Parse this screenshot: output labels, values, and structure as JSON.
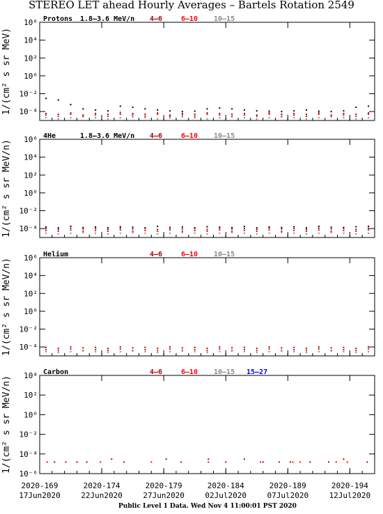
{
  "title": "STEREO LET ahead Hourly Averages – Bartels Rotation 2549",
  "footer": "Public Level 1 Data. Wed Nov  4 11:00:01 PST 2020",
  "chart_data": [
    {
      "type": "scatter",
      "label": "Protons",
      "ylabel": "1/(cm² s sr MeV)",
      "xlim": [
        169,
        196
      ],
      "ylim": [
        1e-05,
        1000000
      ],
      "log_y": true,
      "xticks": [
        {
          "value": 169,
          "label": "2020-169",
          "date": "17Jun2020"
        },
        {
          "value": 174,
          "label": "2020-174",
          "date": "22Jun2020"
        },
        {
          "value": 179,
          "label": "2020-179",
          "date": "27Jun2020"
        },
        {
          "value": 184,
          "label": "2020-184",
          "date": "02Jul2020"
        },
        {
          "value": 189,
          "label": "2020-189",
          "date": "07Jul2020"
        },
        {
          "value": 194,
          "label": "2020-194",
          "date": "12Jul2020"
        }
      ],
      "yticks": [
        {
          "value": 1000000,
          "label": "10⁶"
        },
        {
          "value": 10000,
          "label": "10⁴"
        },
        {
          "value": 100,
          "label": "10²"
        },
        {
          "value": 1,
          "label": "10⁰"
        },
        {
          "value": 0.01,
          "label": "10⁻²"
        },
        {
          "value": 0.0001,
          "label": "10⁻⁴"
        }
      ],
      "x": [
        169.5,
        170.5,
        171.5,
        172.5,
        173.5,
        174.5,
        175.5,
        176.5,
        177.5,
        178.5,
        179.5,
        180.5,
        181.5,
        182.5,
        183.5,
        184.5,
        185.5,
        186.5,
        187.5,
        188.5,
        189.5,
        190.5,
        191.5,
        192.5,
        193.5,
        194.5,
        195.5
      ],
      "series": [
        {
          "name": "1.8–3.6 MeV/n",
          "color": "#000000",
          "values": [
            0.003,
            0.002,
            0.0006,
            0.0002,
            0.00015,
            0.00012,
            0.0004,
            0.0003,
            0.0002,
            0.00015,
            0.00012,
            0.0001,
            0.00011,
            0.0002,
            0.00025,
            0.0002,
            0.00015,
            0.00012,
            0.00011,
            0.0001,
            0.00012,
            0.00015,
            0.00011,
            0.0001,
            0.00012,
            0.0003,
            0.0004
          ]
        },
        {
          "name": "4–6",
          "color": "#b00000",
          "values": [
            6e-05,
            5e-05,
            7e-05,
            4e-05,
            6e-05,
            5e-05,
            8e-05,
            6e-05,
            5e-05,
            7e-05,
            4e-05,
            6e-05,
            5e-05,
            7e-05,
            6e-05,
            5e-05,
            6e-05,
            4e-05,
            7e-05,
            5e-05,
            6e-05,
            5e-05,
            7e-05,
            4e-05,
            6e-05,
            5e-05,
            7e-05
          ]
        },
        {
          "name": "6–10",
          "color": "#ff0000",
          "values": [
            4e-05,
            3e-05,
            5e-05,
            3e-05,
            4e-05,
            3e-05,
            5e-05,
            4e-05,
            3e-05,
            5e-05,
            3e-05,
            4e-05,
            3e-05,
            5e-05,
            4e-05,
            3e-05,
            4e-05,
            3e-05,
            5e-05,
            3e-05,
            4e-05,
            3e-05,
            5e-05,
            3e-05,
            4e-05,
            3e-05,
            5e-05
          ]
        },
        {
          "name": "10–15",
          "color": "#888888",
          "values": [
            2e-05,
            1.5e-05,
            2e-05,
            2.5e-05,
            2e-05,
            1.5e-05,
            2e-05,
            2.5e-05,
            2e-05,
            1.5e-05,
            2e-05,
            2.5e-05,
            2e-05,
            1.5e-05,
            2e-05,
            2.5e-05,
            2e-05,
            1.5e-05,
            2e-05,
            2.5e-05,
            2e-05,
            1.5e-05,
            2e-05,
            2.5e-05,
            2e-05,
            1.5e-05,
            2e-05
          ]
        }
      ]
    },
    {
      "type": "scatter",
      "label": "4He",
      "ylabel": "1/(cm² s sr MeV/n)",
      "xlim": [
        169,
        196
      ],
      "ylim": [
        1e-05,
        1000000
      ],
      "log_y": true,
      "yticks": [
        {
          "value": 1000000,
          "label": "10⁶"
        },
        {
          "value": 10000,
          "label": "10⁴"
        },
        {
          "value": 100,
          "label": "10²"
        },
        {
          "value": 1,
          "label": "10⁰"
        },
        {
          "value": 0.01,
          "label": "10⁻²"
        },
        {
          "value": 0.0001,
          "label": "10⁻⁴"
        }
      ],
      "x": [
        169.5,
        170.5,
        171.5,
        172.5,
        173.5,
        174.5,
        175.5,
        176.5,
        177.5,
        178.5,
        179.5,
        180.5,
        181.5,
        182.5,
        183.5,
        184.5,
        185.5,
        186.5,
        187.5,
        188.5,
        189.5,
        190.5,
        191.5,
        192.5,
        193.5,
        194.5,
        195.5
      ],
      "series": [
        {
          "name": "1.8–3.6 MeV/n",
          "color": "#000000",
          "values": [
            0.00015,
            0.00012,
            0.00018,
            0.00013,
            0.00015,
            0.00012,
            0.00016,
            0.00014,
            0.00012,
            0.00018,
            0.00013,
            0.00015,
            0.00012,
            0.00016,
            0.00014,
            0.00013,
            0.00017,
            0.00012,
            0.00015,
            0.00013,
            0.00016,
            0.00012,
            0.00018,
            0.00014,
            0.00013,
            0.00016,
            0.00018
          ]
        },
        {
          "name": "4–6",
          "color": "#b00000",
          "values": [
            0.0001,
            8e-05,
            0.00011,
            9e-05,
            0.0001,
            8e-05,
            0.00011,
            9e-05,
            0.0001,
            8e-05,
            0.00011,
            9e-05,
            0.0001,
            8e-05,
            0.00011,
            9e-05,
            0.0001,
            8e-05,
            0.00011,
            9e-05,
            0.0001,
            8e-05,
            0.00011,
            9e-05,
            0.0001,
            8e-05,
            0.00011
          ]
        },
        {
          "name": "6–10",
          "color": "#ff0000",
          "values": [
            6e-05,
            5e-05,
            7e-05,
            5e-05,
            6e-05,
            5e-05,
            7e-05,
            5e-05,
            6e-05,
            5e-05,
            7e-05,
            5e-05,
            6e-05,
            5e-05,
            7e-05,
            5e-05,
            6e-05,
            5e-05,
            7e-05,
            5e-05,
            6e-05,
            5e-05,
            7e-05,
            5e-05,
            6e-05,
            5e-05,
            7e-05
          ]
        },
        {
          "name": "10–15",
          "color": "#888888",
          "values": [
            3e-05,
            2.5e-05,
            3e-05,
            3.5e-05,
            3e-05,
            2.5e-05,
            3e-05,
            3.5e-05,
            3e-05,
            2.5e-05,
            3e-05,
            3.5e-05,
            3e-05,
            2.5e-05,
            3e-05,
            3.5e-05,
            3e-05,
            2.5e-05,
            3e-05,
            3.5e-05,
            3e-05,
            2.5e-05,
            3e-05,
            3.5e-05,
            3e-05,
            2.5e-05,
            3e-05
          ]
        }
      ]
    },
    {
      "type": "scatter",
      "label": "Helium",
      "ylabel": "1/(cm² s sr MeV/n)",
      "xlim": [
        169,
        196
      ],
      "ylim": [
        1e-05,
        1000000
      ],
      "log_y": true,
      "yticks": [
        {
          "value": 1000000,
          "label": "10⁶"
        },
        {
          "value": 10000,
          "label": "10⁴"
        },
        {
          "value": 100,
          "label": "10²"
        },
        {
          "value": 1,
          "label": "10⁰"
        },
        {
          "value": 0.01,
          "label": "10⁻²"
        },
        {
          "value": 0.0001,
          "label": "10⁻⁴"
        }
      ],
      "x": [
        169.5,
        170.5,
        171.5,
        172.5,
        173.5,
        174.5,
        175.5,
        176.5,
        177.5,
        178.5,
        179.5,
        180.5,
        181.5,
        182.5,
        183.5,
        184.5,
        185.5,
        186.5,
        187.5,
        188.5,
        189.5,
        190.5,
        191.5,
        192.5,
        193.5,
        194.5,
        195.5
      ],
      "series": [
        {
          "name": "4–6",
          "color": "#b00000",
          "values": [
            9e-05,
            7e-05,
            0.0001,
            8e-05,
            9e-05,
            7e-05,
            0.0001,
            8e-05,
            9e-05,
            7e-05,
            0.0001,
            8e-05,
            9e-05,
            7e-05,
            0.0001,
            8e-05,
            9e-05,
            7e-05,
            0.0001,
            8e-05,
            9e-05,
            7e-05,
            0.0001,
            8e-05,
            9e-05,
            7e-05,
            0.0001
          ]
        },
        {
          "name": "6–10",
          "color": "#ff0000",
          "values": [
            5e-05,
            4e-05,
            6e-05,
            4e-05,
            5e-05,
            4e-05,
            6e-05,
            4e-05,
            5e-05,
            4e-05,
            6e-05,
            4e-05,
            5e-05,
            4e-05,
            6e-05,
            4e-05,
            5e-05,
            4e-05,
            6e-05,
            4e-05,
            5e-05,
            4e-05,
            6e-05,
            4e-05,
            5e-05,
            4e-05,
            6e-05
          ]
        },
        {
          "name": "10–15",
          "color": "#888888",
          "values": [
            3e-05,
            2.5e-05,
            3e-05,
            3.5e-05,
            3e-05,
            2.5e-05,
            3e-05,
            3.5e-05,
            3e-05,
            2.5e-05,
            3e-05,
            3.5e-05,
            3e-05,
            2.5e-05,
            3e-05,
            3.5e-05,
            3e-05,
            2.5e-05,
            3e-05,
            3.5e-05,
            3e-05,
            2.5e-05,
            3e-05,
            3.5e-05,
            3e-05,
            2.5e-05,
            3e-05
          ]
        }
      ]
    },
    {
      "type": "scatter",
      "label": "Carbon",
      "ylabel": "1/(cm² s sr MeV/n)",
      "xlim": [
        169,
        196
      ],
      "ylim": [
        1e-06,
        10000
      ],
      "log_y": true,
      "yticks": [
        {
          "value": 10000,
          "label": "10⁴"
        },
        {
          "value": 100,
          "label": "10²"
        },
        {
          "value": 1,
          "label": "10⁰"
        },
        {
          "value": 0.01,
          "label": "10⁻²"
        },
        {
          "value": 0.0001,
          "label": "10⁻⁴"
        },
        {
          "value": 1e-06,
          "label": "10⁻⁶"
        }
      ],
      "series": [
        {
          "name": "4–6",
          "color": "#b00000",
          "x": [
            170.2,
            171.1,
            172.0,
            172.8,
            174.8,
            175.8,
            179.2,
            180.4,
            182.6,
            184.0,
            185.5,
            187.0,
            188.3,
            189.2,
            190.8,
            192.3,
            193.5,
            195.4
          ],
          "values": [
            1.5e-05,
            1.5e-05,
            1.5e-05,
            1.5e-05,
            3e-05,
            1.5e-05,
            3e-05,
            1.5e-05,
            3e-05,
            1.5e-05,
            3e-05,
            1.5e-05,
            1.5e-05,
            1.5e-05,
            1.5e-05,
            1.5e-05,
            3e-05,
            1.5e-05
          ]
        },
        {
          "name": "6–10",
          "color": "#ff0000",
          "x": [
            169.6,
            173.9,
            178.0,
            182.6,
            186.8,
            189.4,
            190.0,
            192.9,
            193.8
          ],
          "values": [
            1.5e-05,
            1.5e-05,
            1.5e-05,
            1.5e-05,
            1.5e-05,
            1.5e-05,
            1.5e-05,
            1.5e-05,
            1.5e-05
          ]
        },
        {
          "name": "10–15",
          "color": "#888888",
          "x": [],
          "values": []
        },
        {
          "name": "15–27",
          "color": "#0000ff",
          "x": [],
          "values": []
        }
      ]
    }
  ]
}
